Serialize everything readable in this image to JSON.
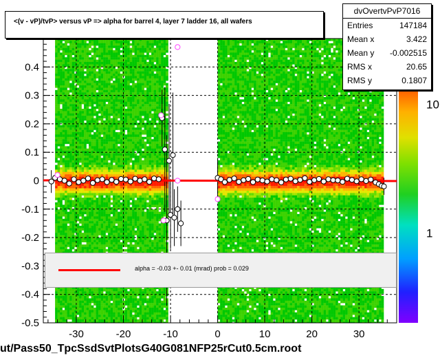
{
  "chart_data": {
    "type": "scatter",
    "title": "<(v - vP)/tvP> versus   vP => alpha for barrel 4, layer 7 ladder 16, all wafers",
    "xlim": [
      -37,
      38
    ],
    "ylim": [
      -0.5,
      0.5
    ],
    "x_ticks": [
      -30,
      -20,
      -10,
      0,
      10,
      20,
      30
    ],
    "y_ticks": [
      -0.5,
      -0.4,
      -0.3,
      -0.2,
      -0.1,
      0,
      0.1,
      0.2,
      0.3,
      0.4
    ],
    "y_tick_labels": [
      "-0.5",
      "-0.4",
      "-0.3",
      "-0.2",
      "-0.1",
      "0",
      "0.1",
      "0.2",
      "0.3",
      "0.4"
    ],
    "grid": true,
    "color_scale": {
      "type": "log",
      "labels": [
        {
          "value": 10,
          "text": "10"
        },
        {
          "value": 1,
          "text": "1"
        }
      ]
    },
    "density_bands": [
      {
        "x": [
          -34.5,
          -11
        ]
      },
      {
        "x": [
          0,
          35
        ]
      }
    ],
    "profile_points": {
      "x": [
        -35.3,
        -34.5,
        -33.5,
        -32.5,
        -31.5,
        -30.5,
        -29.5,
        -28.5,
        -27.5,
        -26.5,
        -25.5,
        -24.5,
        -23.5,
        -22.5,
        -21.5,
        -20.5,
        -19.5,
        -18.5,
        -17.5,
        -16.5,
        -15.5,
        -14.5,
        -13.5,
        -12.5,
        -11.8,
        -11.2,
        -10.8,
        -10.3,
        -10,
        -9.5,
        -9.2,
        -8.5,
        -7.8,
        0,
        0.7,
        1.5,
        2.5,
        3.5,
        4.5,
        5.5,
        6.5,
        7.5,
        8.5,
        9.5,
        10.5,
        11.5,
        12.5,
        13.5,
        14.5,
        15.5,
        16.5,
        17.5,
        18.5,
        19.5,
        20.5,
        21.5,
        22.5,
        23.5,
        24.5,
        25.5,
        26.5,
        27.5,
        28.5,
        29.5,
        30.5,
        31.5,
        32.5,
        33.5,
        34.2,
        34.8,
        35.3
      ],
      "y": [
        -0.003,
        0.01,
        0.005,
        0,
        -0.01,
        0.005,
        -0.005,
        0,
        0.008,
        -0.008,
        0.002,
        0.005,
        -0.005,
        0.003,
        -0.004,
        0.006,
        0.004,
        -0.003,
        0.007,
        0,
        0.005,
        -0.004,
        0.008,
        0.005,
        0.22,
        0.11,
        -0.14,
        0.07,
        -0.12,
        0.09,
        -0.13,
        -0.1,
        -0.15,
        0.01,
        0.005,
        -0.005,
        0.003,
        0.008,
        -0.004,
        0.002,
        0.006,
        -0.005,
        0.004,
        0.001,
        -0.003,
        0.005,
        0.002,
        -0.006,
        0.004,
        0.007,
        -0.002,
        0.003,
        0.009,
        -0.004,
        0.002,
        0.006,
        -0.003,
        0.005,
        0.002,
        0.001,
        -0.004,
        0.007,
        0.003,
        -0.002,
        0.005,
        -0.001,
        0.004,
        -0.006,
        -0.012,
        -0.018,
        -0.02
      ]
    },
    "error_bars": [
      {
        "x": -11.8,
        "y": 0.22,
        "err": 0.1
      },
      {
        "x": -11.2,
        "y": 0.11,
        "err": 0.22
      },
      {
        "x": -10.8,
        "y": -0.14,
        "err": 0.3
      },
      {
        "x": -10.3,
        "y": 0.07,
        "err": 0.2
      },
      {
        "x": -10,
        "y": -0.12,
        "err": 0.12
      },
      {
        "x": -9.5,
        "y": 0.09,
        "err": 0.22
      },
      {
        "x": -9.2,
        "y": -0.13,
        "err": 0.1
      },
      {
        "x": -8.5,
        "y": -0.1,
        "err": 0.08
      },
      {
        "x": -7.8,
        "y": -0.15,
        "err": 0.08
      },
      {
        "x": 0,
        "y": 0.01,
        "err": 0.07
      },
      {
        "x": -35.3,
        "y": -0.003,
        "err": 0.04
      },
      {
        "x": 35.3,
        "y": -0.02,
        "err": 0.03
      }
    ],
    "outliers": [
      {
        "x": -8.5,
        "y": 0.47
      },
      {
        "x": -12,
        "y": 0.23
      },
      {
        "x": -11.5,
        "y": -0.14
      },
      {
        "x": -8.5,
        "y": 0
      },
      {
        "x": 0,
        "y": -0.065
      },
      {
        "x": -34,
        "y": 0.02
      }
    ],
    "fit": {
      "alpha": -0.03,
      "y_intercept": 0,
      "x_range": [
        -37,
        38
      ]
    },
    "stats": {
      "name": "dvOvertvPvP7016",
      "rows": [
        {
          "label": "Entries",
          "value": "147184"
        },
        {
          "label": "Mean x",
          "value": "3.422"
        },
        {
          "label": "Mean y",
          "value": "-0.002515"
        },
        {
          "label": "RMS x",
          "value": "20.65"
        },
        {
          "label": "RMS y",
          "value": "0.1807"
        }
      ]
    },
    "legend_text": "alpha =   -0.03 +-  0.01 (mrad) prob = 0.029",
    "footer": "ut/Pass50_TpcSsdSvtPlotsG40G081NFP25rCut0.5cm.root",
    "colors": {
      "fit_line": "#ff0000",
      "grid": "#000000",
      "marker_dark": "#000000",
      "marker_outlier": "#ff44ff"
    }
  }
}
